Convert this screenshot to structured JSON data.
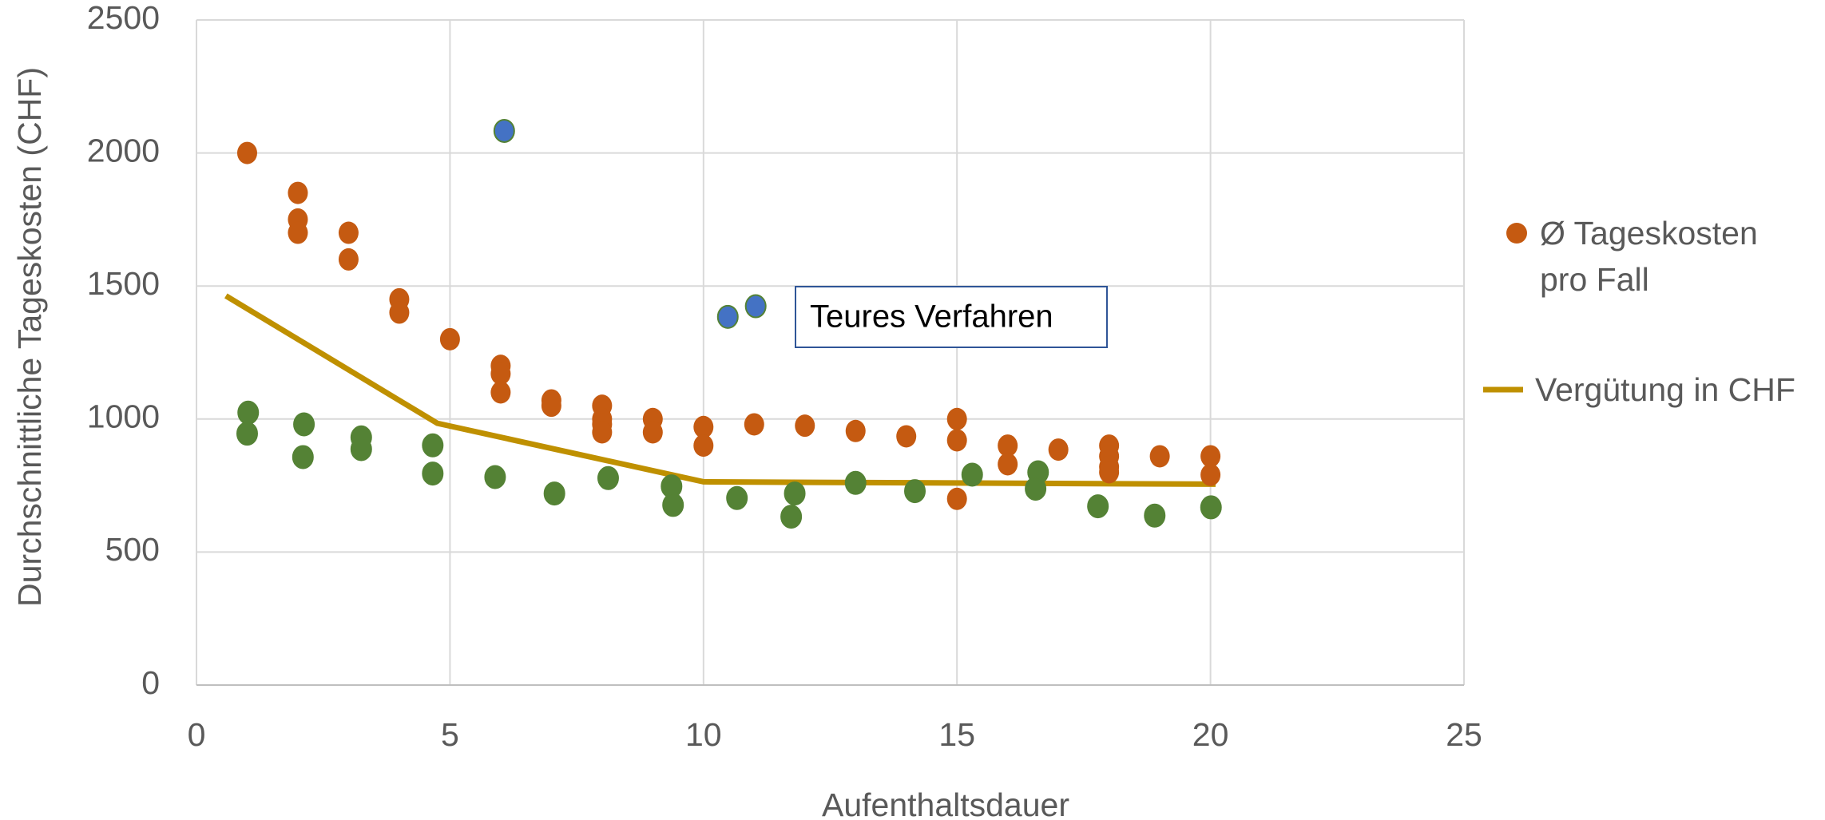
{
  "chart_data": {
    "type": "scatter",
    "xlabel": "Aufenthaltsdauer",
    "ylabel": "Durchschnittliche Tageskosten (CHF)",
    "xlim": [
      0,
      25
    ],
    "xticks": [
      0,
      5,
      10,
      15,
      20,
      25
    ],
    "ylim": [
      0,
      2500
    ],
    "yticks": [
      0,
      500,
      1000,
      1500,
      2000,
      2500
    ],
    "grid": true,
    "legend": "right",
    "annotation": "Teures Verfahren",
    "series": [
      {
        "name": "Ø Tageskosten pro Fall",
        "color": "#c55a11",
        "kind": "scatter",
        "x": [
          1,
          2,
          2,
          2,
          3,
          3,
          4,
          4,
          5,
          6,
          6,
          6,
          7,
          7,
          8,
          8,
          8,
          8,
          9,
          9,
          10,
          10,
          11,
          12,
          13,
          14,
          15,
          15,
          15,
          16,
          16,
          17,
          18,
          18,
          18,
          18,
          19,
          20,
          20
        ],
        "values": [
          2000,
          1850,
          1750,
          1700,
          1700,
          1600,
          1450,
          1400,
          1300,
          1200,
          1170,
          1100,
          1070,
          1050,
          1050,
          1000,
          980,
          950,
          1000,
          950,
          970,
          900,
          980,
          975,
          955,
          935,
          1000,
          920,
          700,
          900,
          830,
          885,
          900,
          860,
          820,
          800,
          860,
          860,
          790
        ]
      },
      {
        "color": "#548235",
        "kind": "scatter",
        "x": [
          1.02,
          1.0,
          2.12,
          2.1,
          3.25,
          3.25,
          4.66,
          4.66,
          5.89,
          7.06,
          8.12,
          9.37,
          9.4,
          10.66,
          11.8,
          11.73,
          13.0,
          14.17,
          15.3,
          16.6,
          16.55,
          17.78,
          18.9,
          20.01
        ],
        "values": [
          1024,
          945,
          980,
          857,
          931,
          887,
          901,
          795,
          782,
          720,
          778,
          747,
          677,
          703,
          720,
          633,
          760,
          729,
          791,
          800,
          738,
          672,
          637,
          668
        ]
      },
      {
        "color": "#4472c4",
        "kind": "scatter",
        "x": [
          6.07,
          10.48,
          11.03
        ],
        "values": [
          2083,
          1384,
          1424
        ]
      },
      {
        "name": "Vergütung in CHF",
        "color": "#bf9000",
        "kind": "line",
        "x": [
          0.58,
          4.75,
          10,
          20.1
        ],
        "values": [
          1463,
          984,
          764,
          755
        ]
      }
    ]
  }
}
